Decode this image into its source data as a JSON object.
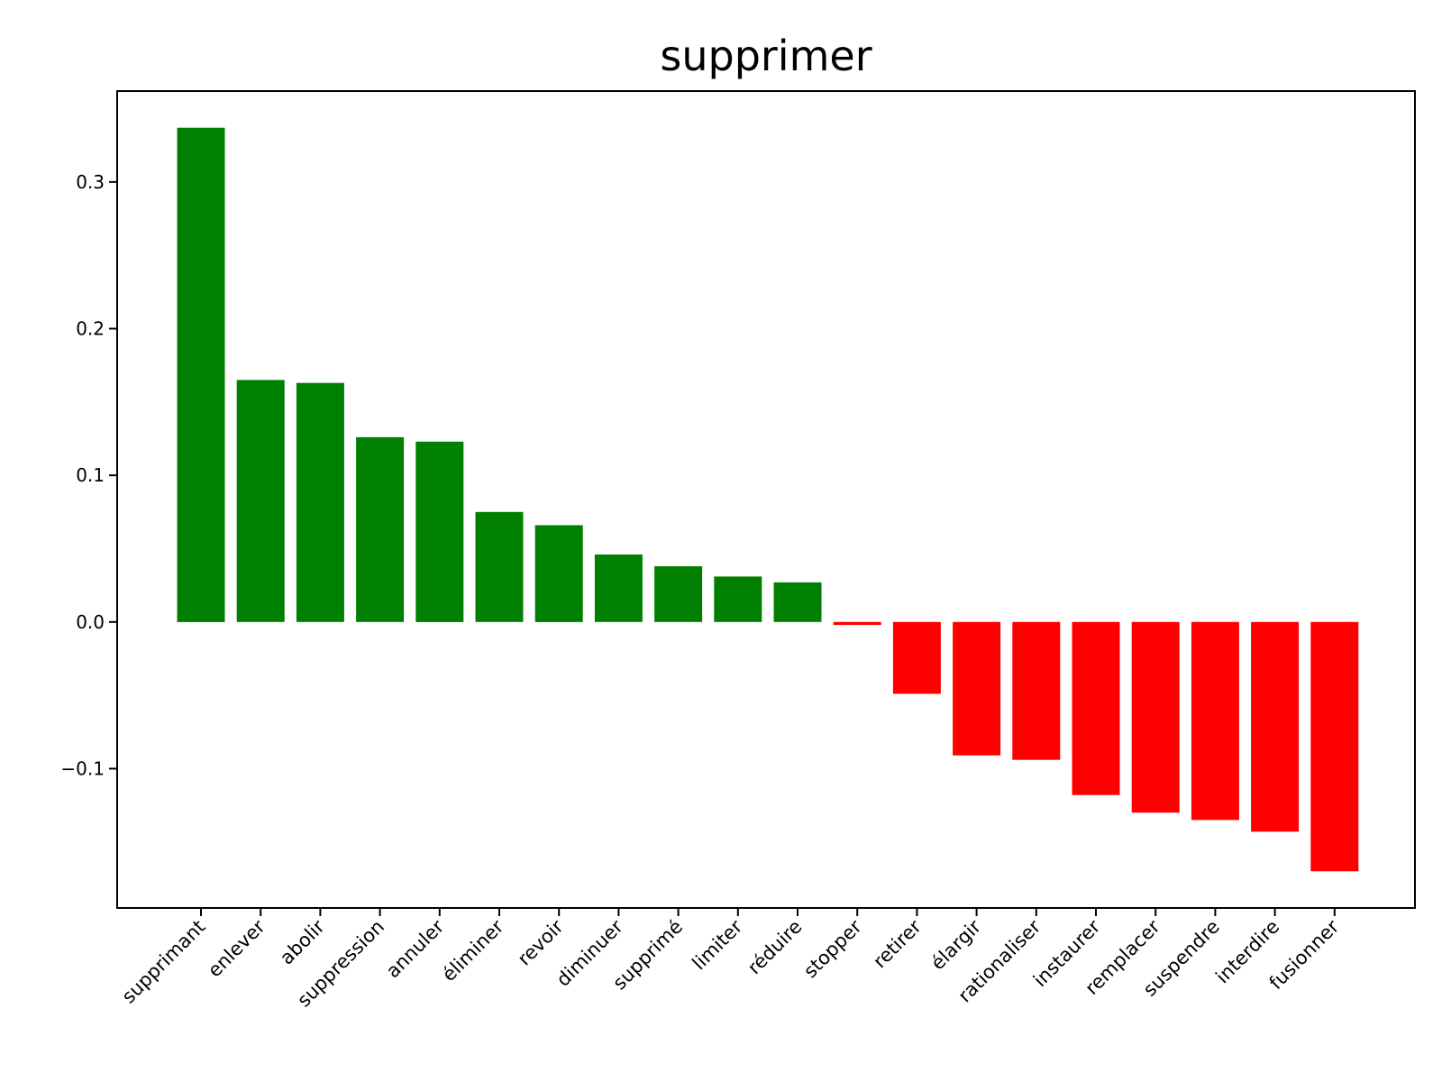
{
  "chart_data": {
    "type": "bar",
    "title": "supprimer",
    "xlabel": "",
    "ylabel": "",
    "ylim": [
      -0.195,
      0.362
    ],
    "yticks": [
      -0.1,
      0.0,
      0.1,
      0.2,
      0.3
    ],
    "ytick_labels": [
      "−0.1",
      "0.0",
      "0.1",
      "0.2",
      "0.3"
    ],
    "grid": false,
    "positive_color": "#008000",
    "negative_color": "#ff0000",
    "categories": [
      "supprimant",
      "enlever",
      "abolir",
      "suppression",
      "annuler",
      "éliminer",
      "revoir",
      "diminuer",
      "supprimé",
      "limiter",
      "réduire",
      "stopper",
      "retirer",
      "élargir",
      "rationaliser",
      "instaurer",
      "remplacer",
      "suspendre",
      "interdire",
      "fusionner"
    ],
    "values": [
      0.337,
      0.165,
      0.163,
      0.126,
      0.123,
      0.075,
      0.066,
      0.046,
      0.038,
      0.031,
      0.027,
      -0.002,
      -0.049,
      -0.091,
      -0.094,
      -0.118,
      -0.13,
      -0.135,
      -0.143,
      -0.17
    ]
  }
}
